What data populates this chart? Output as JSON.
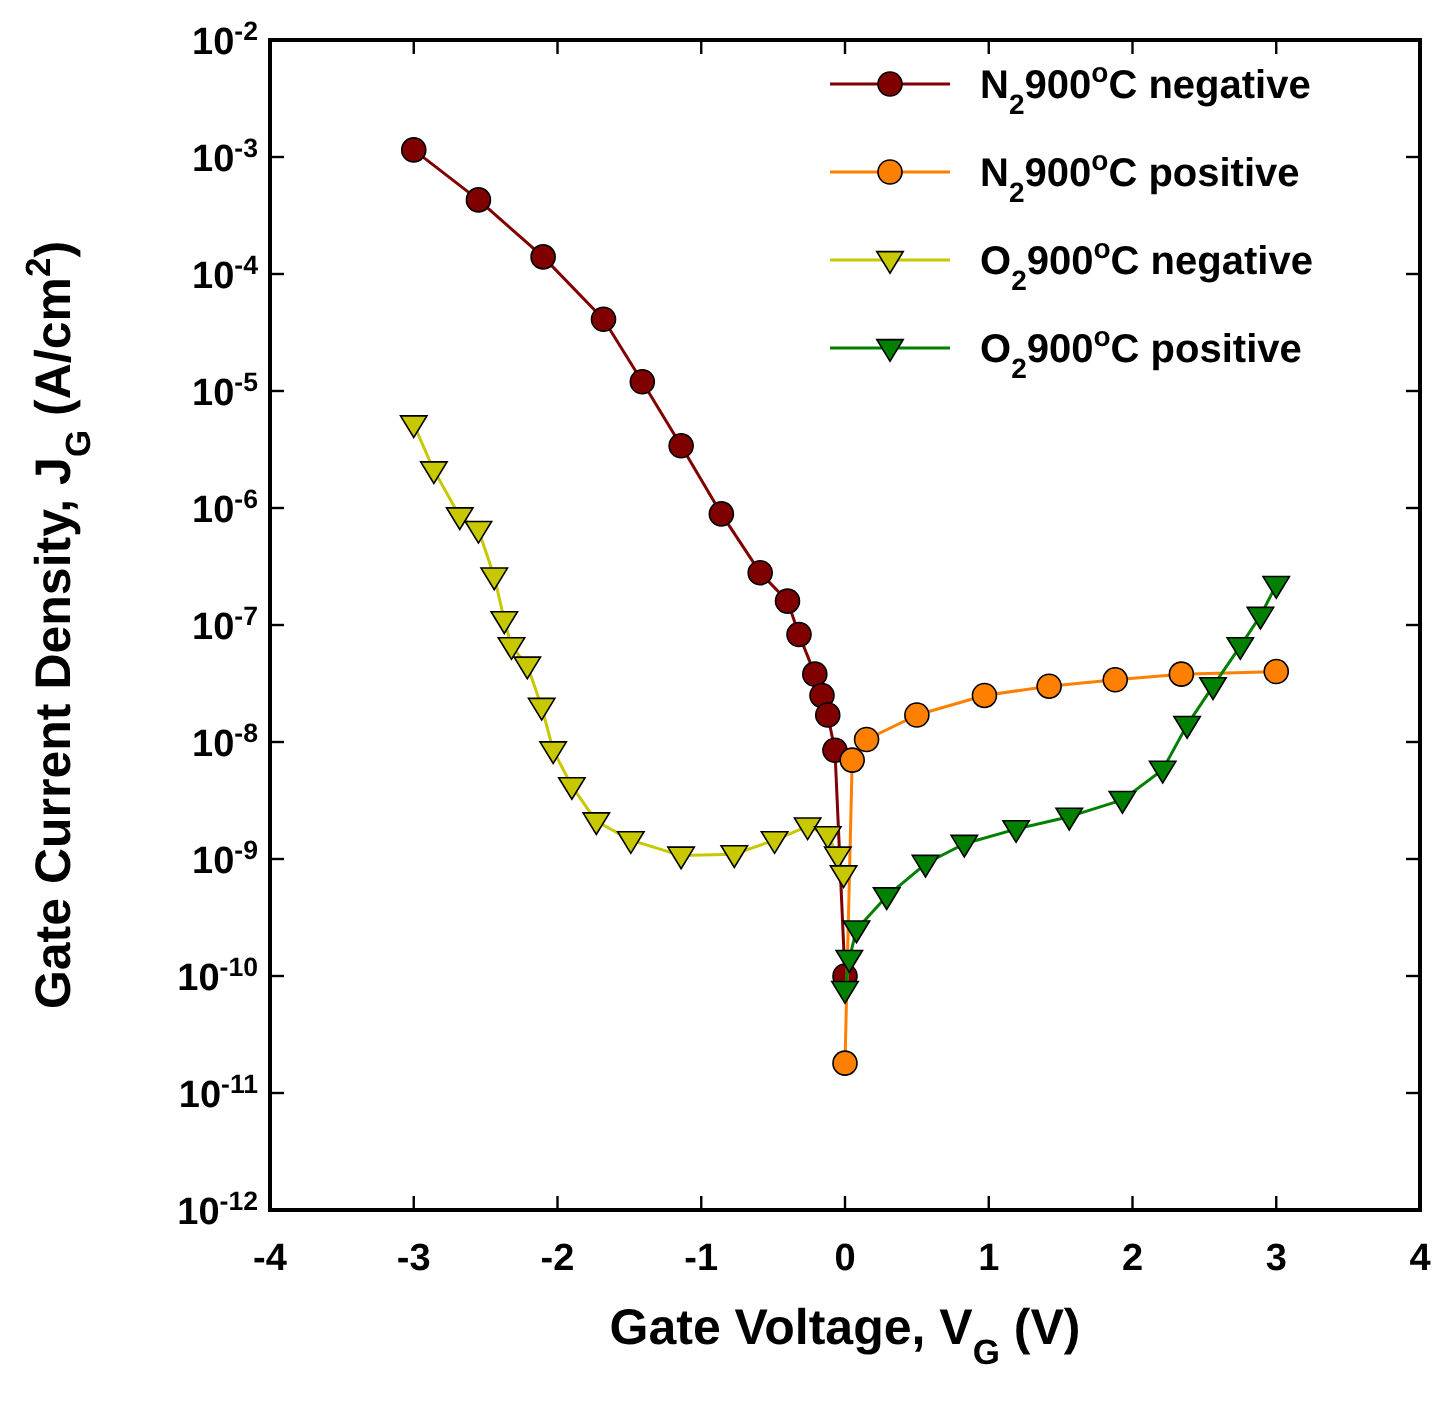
{
  "chart_data": {
    "type": "line",
    "xlabel": "Gate Voltage, V$_{G}$ (V)",
    "ylabel": "Gate Current Density, J$_{G}$ (A/cm$^{2}$)",
    "log": "y",
    "grid": false,
    "legend": "top right",
    "line_style": "solid",
    "xlim": [
      -4,
      4
    ],
    "xticks": [
      -4,
      -3,
      -2,
      -1,
      0,
      1,
      2,
      3,
      4
    ],
    "ylim": [
      1e-12,
      0.01
    ],
    "yticks": [
      {
        "value": 1e-12,
        "label": "10$^{-12}$"
      },
      {
        "value": 1e-11,
        "label": "10$^{-11}$"
      },
      {
        "value": 1e-10,
        "label": "10$^{-10}$"
      },
      {
        "value": 1e-09,
        "label": "10$^{-9}$"
      },
      {
        "value": 1e-08,
        "label": "10$^{-8}$"
      },
      {
        "value": 1e-07,
        "label": "10$^{-7}$"
      },
      {
        "value": 1e-06,
        "label": "10$^{-6}$"
      },
      {
        "value": 1e-05,
        "label": "10$^{-5}$"
      },
      {
        "value": 0.0001,
        "label": "10$^{-4}$"
      },
      {
        "value": 0.001,
        "label": "10$^{-3}$"
      },
      {
        "value": 0.01,
        "label": "10$^{-2}$"
      }
    ],
    "series": [
      {
        "name": "N$_{2}$900$^{o}$C negative",
        "color": "#800000",
        "marker": "circle",
        "x": [
          -3.0,
          -2.55,
          -2.1,
          -1.68,
          -1.41,
          -1.14,
          -0.86,
          -0.59,
          -0.4,
          -0.32,
          -0.21,
          -0.16,
          -0.12,
          -0.07,
          0.0
        ],
        "values": [
          0.00115,
          0.00043,
          0.00014,
          4.1e-05,
          1.2e-05,
          3.4e-06,
          8.9e-07,
          2.8e-07,
          1.6e-07,
          8.3e-08,
          3.8e-08,
          2.5e-08,
          1.7e-08,
          8.5e-09,
          1e-10
        ]
      },
      {
        "name": "N$_{2}$900$^{o}$C positive",
        "color": "#ff8000",
        "marker": "circle",
        "x": [
          0.0,
          0.05,
          0.15,
          0.5,
          0.97,
          1.42,
          1.88,
          2.34,
          3.0
        ],
        "values": [
          1.8e-11,
          7e-09,
          1.05e-08,
          1.7e-08,
          2.5e-08,
          3e-08,
          3.4e-08,
          3.8e-08,
          4e-08
        ]
      },
      {
        "name": "O$_{2}$900$^{o}$C negative",
        "color": "#c8c800",
        "marker": "triangle",
        "x": [
          -3.0,
          -2.86,
          -2.68,
          -2.55,
          -2.44,
          -2.37,
          -2.32,
          -2.21,
          -2.11,
          -2.03,
          -1.9,
          -1.73,
          -1.49,
          -1.14,
          -0.77,
          -0.49,
          -0.26,
          -0.12,
          -0.05,
          -0.01
        ],
        "values": [
          5.2e-06,
          2.1e-06,
          8.5e-07,
          6.5e-07,
          2.6e-07,
          1.1e-07,
          6.6e-08,
          4.5e-08,
          2e-08,
          8.5e-09,
          4.2e-09,
          2.1e-09,
          1.45e-09,
          1.07e-09,
          1.1e-09,
          1.45e-09,
          1.9e-09,
          1.6e-09,
          1.07e-09,
          7.4e-10
        ]
      },
      {
        "name": "O$_{2}$900$^{o}$C positive",
        "color": "#008000",
        "marker": "triangle",
        "x": [
          0.0,
          0.03,
          0.08,
          0.29,
          0.56,
          0.83,
          1.19,
          1.56,
          1.93,
          2.21,
          2.38,
          2.56,
          2.75,
          2.89,
          3.0
        ],
        "values": [
          7.6e-11,
          1.4e-10,
          2.5e-10,
          4.8e-10,
          9.1e-10,
          1.35e-09,
          1.8e-09,
          2.3e-09,
          3.2e-09,
          5.8e-09,
          1.4e-08,
          3e-08,
          6.6e-08,
          1.2e-07,
          2.2e-07
        ]
      }
    ]
  }
}
